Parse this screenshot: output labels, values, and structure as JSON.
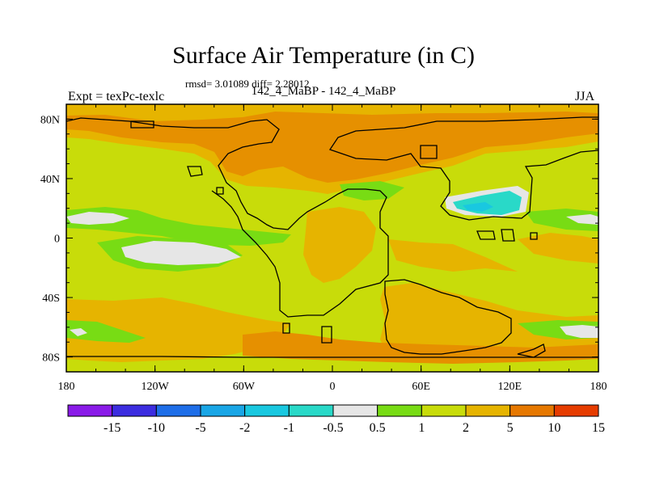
{
  "title": "Surface Air Temperature (in C)",
  "stats_line": "rmsd= 3.01089 diff= 2.28012",
  "diff_label": "142_4_MaBP - 142_4_MaBP",
  "left_label": "Expt = texPc-texlc",
  "right_label": "JJA",
  "x_ticks": [
    "180",
    "120W",
    "60W",
    "0",
    "60E",
    "120E",
    "180"
  ],
  "y_ticks": [
    "80N",
    "40N",
    "0",
    "40S",
    "80S"
  ],
  "colorbar": {
    "labels": [
      "-15",
      "-10",
      "-5",
      "-2",
      "-1",
      "-0.5",
      "0.5",
      "1",
      "2",
      "5",
      "10",
      "15"
    ],
    "colors": [
      "#8a1be8",
      "#3c2de0",
      "#1e6ee8",
      "#19a6e6",
      "#19c8e0",
      "#29d9c8",
      "#e6e6e6",
      "#78dc14",
      "#c8dc0a",
      "#e6b400",
      "#e67800",
      "#e63c00"
    ]
  },
  "map_colors": {
    "base": "#c8dc0a",
    "warm": "#e6b400",
    "warmer": "#e69000",
    "green": "#78dc14",
    "white": "#e6e6e6",
    "cyan": "#29d9c8",
    "blue": "#19c8e0"
  }
}
